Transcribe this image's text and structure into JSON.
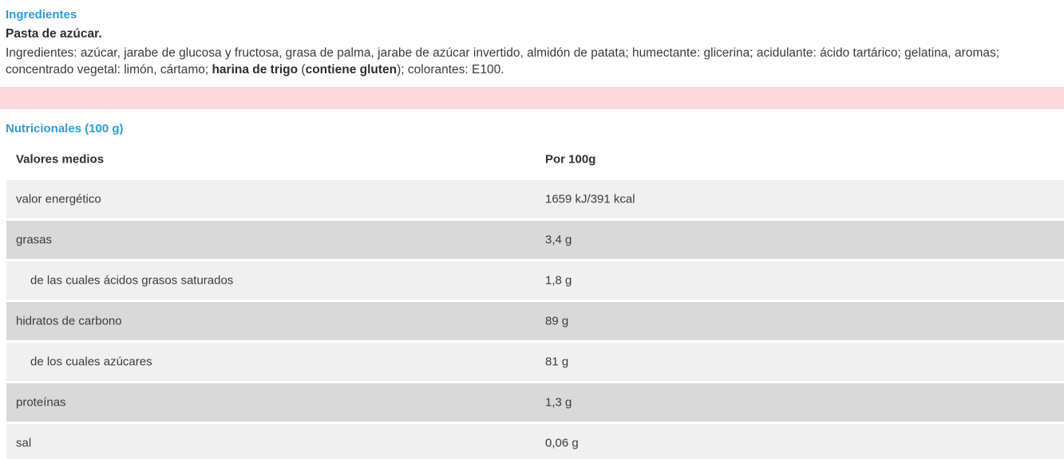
{
  "colors": {
    "accent_blue": "#2d9cdb",
    "pink_band": "#fbd7de",
    "row_light": "#f0f0f0",
    "row_dark": "#d9d9d9",
    "body_text": "#3b3b3b"
  },
  "ingredients": {
    "heading": "Ingredientes",
    "product": "Pasta de azúcar.",
    "parts": [
      "Ingredientes: azúcar, jarabe de glucosa y fructosa, grasa de palma, jarabe de azúcar invertido, almidón de patata; humectante: glicerina; acidulante: ácido tartárico; gelatina, aromas; concentrado vegetal: limón, cártamo; ",
      "harina de trigo",
      " (",
      "contiene gluten",
      "); colorantes: E100."
    ]
  },
  "nutrition": {
    "heading": "Nutricionales (100 g)",
    "table": {
      "header": {
        "label": "Valores medios",
        "value": "Por 100g"
      },
      "rows": [
        {
          "label": "valor energético",
          "value": "1659 kJ/391 kcal"
        },
        {
          "label": "grasas",
          "value": "3,4 g"
        },
        {
          "label": "de las cuales ácidos grasos saturados",
          "value": "1,8 g"
        },
        {
          "label": "hidratos de carbono",
          "value": "89 g"
        },
        {
          "label": "de los cuales azúcares",
          "value": "81 g"
        },
        {
          "label": "proteínas",
          "value": "1,3 g"
        },
        {
          "label": "sal",
          "value": "0,06 g"
        }
      ]
    }
  }
}
